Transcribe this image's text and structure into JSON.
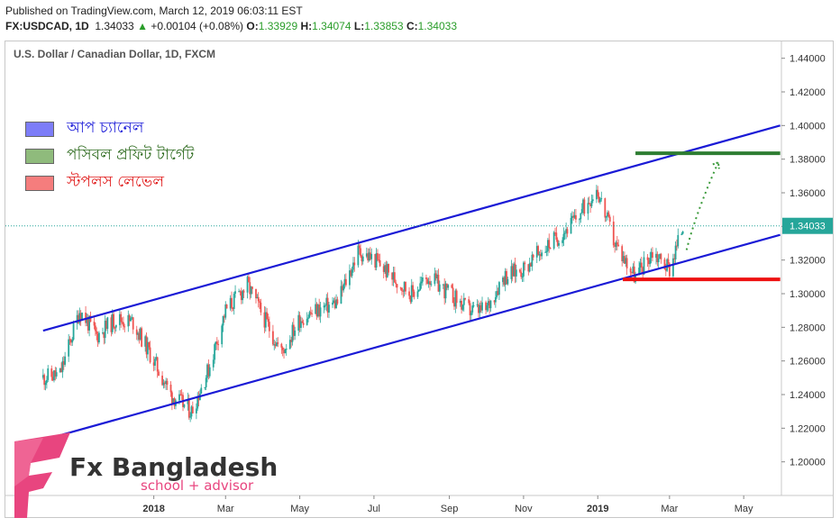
{
  "header": {
    "published": "Published on TradingView.com, March 12, 2019 06:03:11 EST",
    "symbol": "FX:USDCAD, 1D",
    "last": "1.34033",
    "change_arrow": "▲",
    "change": "+0.00104 (+0.08%)",
    "o_label": "O:",
    "o": "1.33929",
    "h_label": "H:",
    "h": "1.34074",
    "l_label": "L:",
    "l": "1.33853",
    "c_label": "C:",
    "c": "1.34033"
  },
  "pane_title": "U.S. Dollar / Canadian Dollar, 1D, FXCM",
  "legend": [
    {
      "label": "আপ চ্যানেল",
      "fill": "#7d7df8",
      "text_color": "#1d1dd8"
    },
    {
      "label": "পসিবল প্রফিট টার্গেট",
      "fill": "#8fbb7c",
      "text_color": "#2e6b1f"
    },
    {
      "label": "স্টপলস লেভেল",
      "fill": "#f57d7d",
      "text_color": "#e01b1b"
    }
  ],
  "brand": {
    "name": "Fx Bangladesh",
    "tagline": "school + advisor",
    "accent": "#e8457f"
  },
  "colors": {
    "up": "#26a69a",
    "down": "#ef5350",
    "channel": "#1a1ad6",
    "target": "#2e7d32",
    "stop": "#ee1111",
    "price_tag": "#26a69a"
  },
  "chart_data": {
    "type": "candlestick",
    "title": "U.S. Dollar / Canadian Dollar, 1D, FXCM",
    "price_axis_ticks": [
      "1.44000",
      "1.42000",
      "1.40000",
      "1.38000",
      "1.36000",
      "1.34000",
      "1.32000",
      "1.30000",
      "1.28000",
      "1.26000",
      "1.24000",
      "1.22000",
      "1.20000"
    ],
    "ylim": [
      1.18,
      1.45
    ],
    "time_axis_labels": [
      "2018",
      "Mar",
      "May",
      "Jul",
      "Sep",
      "Nov",
      "2019",
      "Mar",
      "May"
    ],
    "last_price_label": "1.34033",
    "series": [
      {
        "name": "USDCAD",
        "points": [
          [
            "2017-10-02",
            1.25
          ],
          [
            "2017-10-16",
            1.252
          ],
          [
            "2017-11-01",
            1.29
          ],
          [
            "2017-11-15",
            1.275
          ],
          [
            "2017-12-01",
            1.285
          ],
          [
            "2017-12-15",
            1.283
          ],
          [
            "2018-01-01",
            1.26
          ],
          [
            "2018-01-15",
            1.24
          ],
          [
            "2018-02-01",
            1.23
          ],
          [
            "2018-02-15",
            1.255
          ],
          [
            "2018-03-01",
            1.29
          ],
          [
            "2018-03-19",
            1.305
          ],
          [
            "2018-04-02",
            1.285
          ],
          [
            "2018-04-16",
            1.265
          ],
          [
            "2018-05-01",
            1.285
          ],
          [
            "2018-05-15",
            1.29
          ],
          [
            "2018-06-01",
            1.295
          ],
          [
            "2018-06-18",
            1.325
          ],
          [
            "2018-07-02",
            1.32
          ],
          [
            "2018-07-16",
            1.31
          ],
          [
            "2018-08-01",
            1.3
          ],
          [
            "2018-08-15",
            1.31
          ],
          [
            "2018-09-01",
            1.3
          ],
          [
            "2018-09-17",
            1.29
          ],
          [
            "2018-10-01",
            1.29
          ],
          [
            "2018-10-15",
            1.31
          ],
          [
            "2018-11-01",
            1.315
          ],
          [
            "2018-11-15",
            1.325
          ],
          [
            "2018-12-01",
            1.335
          ],
          [
            "2018-12-15",
            1.345
          ],
          [
            "2018-12-31",
            1.363
          ],
          [
            "2019-01-15",
            1.33
          ],
          [
            "2019-02-01",
            1.31
          ],
          [
            "2019-02-15",
            1.325
          ],
          [
            "2019-03-01",
            1.315
          ],
          [
            "2019-03-12",
            1.34
          ]
        ]
      }
    ],
    "annotations": {
      "channel_upper": [
        [
          "2017-10-02",
          1.278
        ],
        [
          "2019-05-31",
          1.4
        ]
      ],
      "channel_lower": [
        [
          "2017-10-02",
          1.213
        ],
        [
          "2019-05-31",
          1.335
        ]
      ],
      "profit_target": {
        "value": 1.3835,
        "from": "2019-02-01",
        "to": "2019-05-31"
      },
      "stop_loss": {
        "value": 1.3085,
        "from": "2019-02-01",
        "to": "2019-05-31"
      },
      "projection": [
        [
          "2019-03-15",
          1.326
        ],
        [
          "2019-04-10",
          1.378
        ]
      ]
    }
  }
}
